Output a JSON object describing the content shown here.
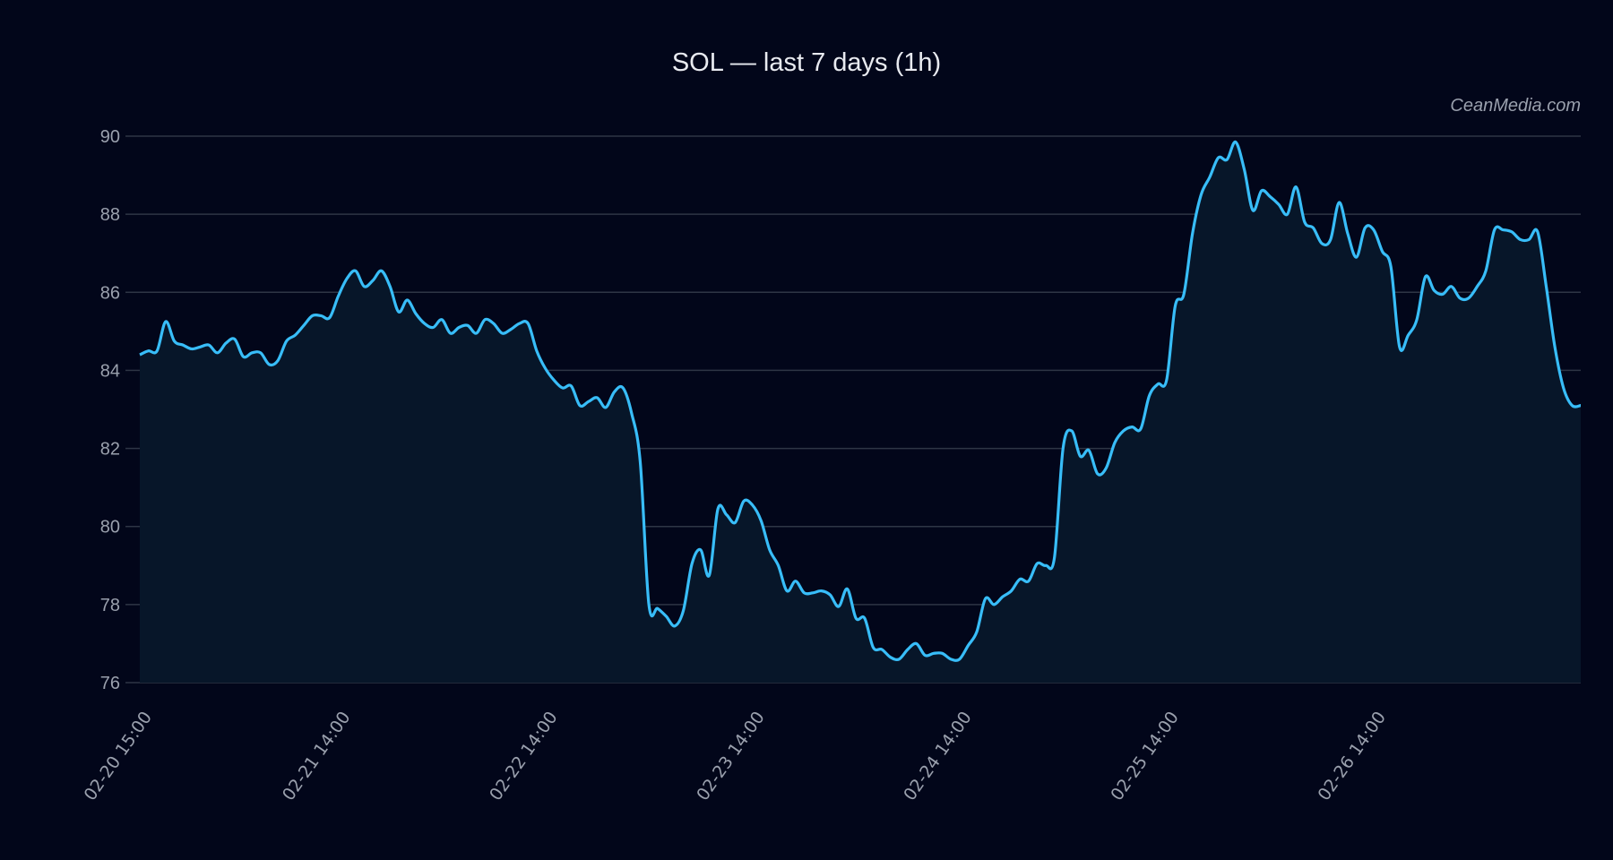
{
  "chart_data": {
    "type": "area",
    "title": "SOL — last 7 days (1h)",
    "watermark": "CeanMedia.com",
    "xlabel": "",
    "ylabel": "",
    "ylim": [
      76,
      90
    ],
    "yticks": [
      76,
      78,
      80,
      82,
      84,
      86,
      88,
      90
    ],
    "grid": true,
    "legend": false,
    "x_tick_labels": [
      "02-20 15:00",
      "02-21 14:00",
      "02-22 14:00",
      "02-23 14:00",
      "02-24 14:00",
      "02-25 14:00",
      "02-26 14:00"
    ],
    "x_tick_index": [
      0,
      23,
      47,
      71,
      95,
      119,
      143
    ],
    "colors": {
      "background": "#02061a",
      "line": "#38bdf8",
      "fill": "#071629",
      "grid": "#2e3545",
      "text": "#9aa0ad",
      "title": "#e8eaf0"
    },
    "series": [
      {
        "name": "SOL",
        "values": [
          84.4,
          84.5,
          84.5,
          85.25,
          84.75,
          84.65,
          84.55,
          84.6,
          84.65,
          84.45,
          84.7,
          84.8,
          84.35,
          84.45,
          84.45,
          84.15,
          84.25,
          84.75,
          84.9,
          85.15,
          85.4,
          85.4,
          85.35,
          85.9,
          86.35,
          86.55,
          86.15,
          86.3,
          86.55,
          86.15,
          85.5,
          85.8,
          85.45,
          85.2,
          85.1,
          85.3,
          84.95,
          85.1,
          85.15,
          84.95,
          85.3,
          85.2,
          84.95,
          85.05,
          85.2,
          85.2,
          84.5,
          84.05,
          83.75,
          83.55,
          83.6,
          83.1,
          83.2,
          83.3,
          83.05,
          83.45,
          83.55,
          82.9,
          81.65,
          78.0,
          77.9,
          77.7,
          77.45,
          77.85,
          79.05,
          79.4,
          78.75,
          80.45,
          80.3,
          80.1,
          80.65,
          80.55,
          80.15,
          79.4,
          79.0,
          78.35,
          78.6,
          78.3,
          78.3,
          78.35,
          78.25,
          77.95,
          78.4,
          77.65,
          77.65,
          76.9,
          76.85,
          76.65,
          76.6,
          76.85,
          77.0,
          76.7,
          76.75,
          76.75,
          76.6,
          76.6,
          76.95,
          77.3,
          78.15,
          78.0,
          78.2,
          78.35,
          78.65,
          78.6,
          79.05,
          79.0,
          79.2,
          82.0,
          82.45,
          81.8,
          81.95,
          81.35,
          81.5,
          82.15,
          82.45,
          82.55,
          82.5,
          83.35,
          83.65,
          83.75,
          85.65,
          85.95,
          87.5,
          88.5,
          88.95,
          89.45,
          89.4,
          89.85,
          89.15,
          88.1,
          88.6,
          88.45,
          88.25,
          88.0,
          88.7,
          87.8,
          87.65,
          87.25,
          87.35,
          88.3,
          87.5,
          86.9,
          87.65,
          87.6,
          87.05,
          86.65,
          84.6,
          84.9,
          85.3,
          86.4,
          86.05,
          85.95,
          86.15,
          85.85,
          85.85,
          86.15,
          86.55,
          87.6,
          87.6,
          87.55,
          87.35,
          87.35,
          87.55,
          86.15,
          84.6,
          83.55,
          83.1,
          83.1
        ]
      }
    ]
  }
}
